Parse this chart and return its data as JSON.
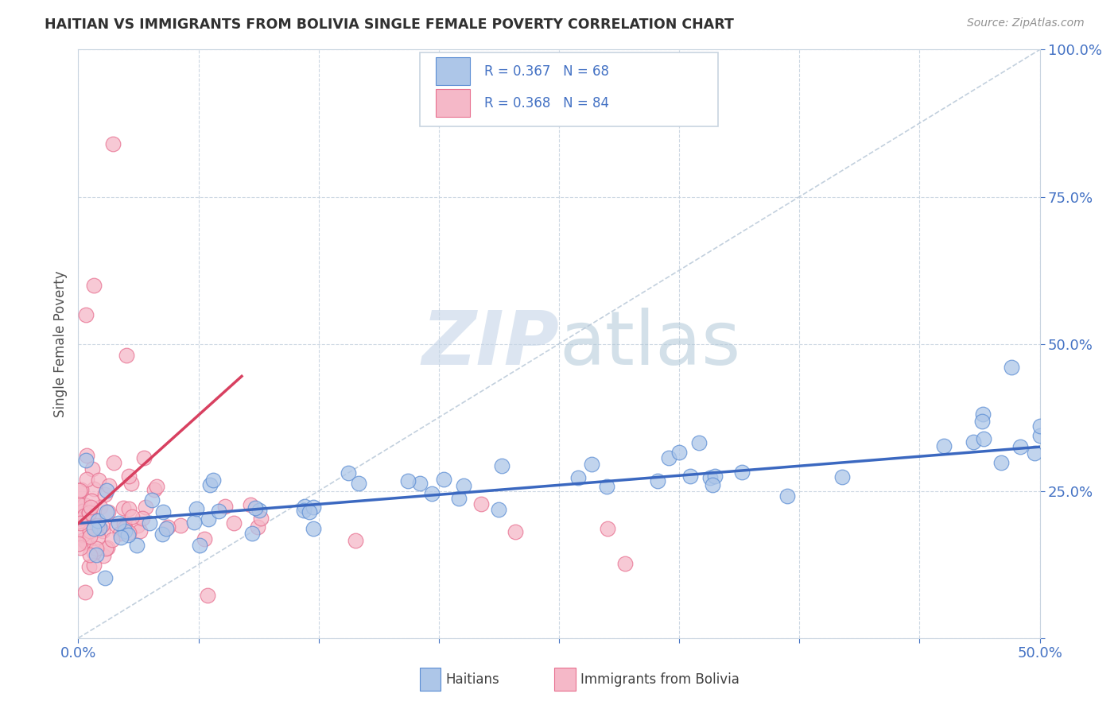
{
  "title": "HAITIAN VS IMMIGRANTS FROM BOLIVIA SINGLE FEMALE POVERTY CORRELATION CHART",
  "source": "Source: ZipAtlas.com",
  "ylabel": "Single Female Poverty",
  "xlim": [
    0.0,
    0.5
  ],
  "ylim": [
    0.0,
    1.0
  ],
  "haitian_R": 0.367,
  "haitian_N": 68,
  "bolivia_R": 0.368,
  "bolivia_N": 84,
  "blue_color": "#adc6e8",
  "blue_edge_color": "#5b8dd4",
  "blue_line_color": "#3b68c0",
  "pink_color": "#f5b8c8",
  "pink_edge_color": "#e87090",
  "pink_line_color": "#d84060",
  "watermark_zip_color": "#c5d5e8",
  "watermark_atlas_color": "#b0c8d8",
  "background_color": "#ffffff",
  "grid_color": "#c8d4e0",
  "tick_color": "#4472c4",
  "ylabel_color": "#505050",
  "title_color": "#303030",
  "source_color": "#909090",
  "legend_border_color": "#c8d4e0",
  "diag_line_color": "#b8c8d8",
  "haitian_trend_x": [
    0.0,
    0.5
  ],
  "haitian_trend_y": [
    0.195,
    0.325
  ],
  "bolivia_trend_x": [
    0.0,
    0.085
  ],
  "bolivia_trend_y": [
    0.195,
    0.445
  ]
}
